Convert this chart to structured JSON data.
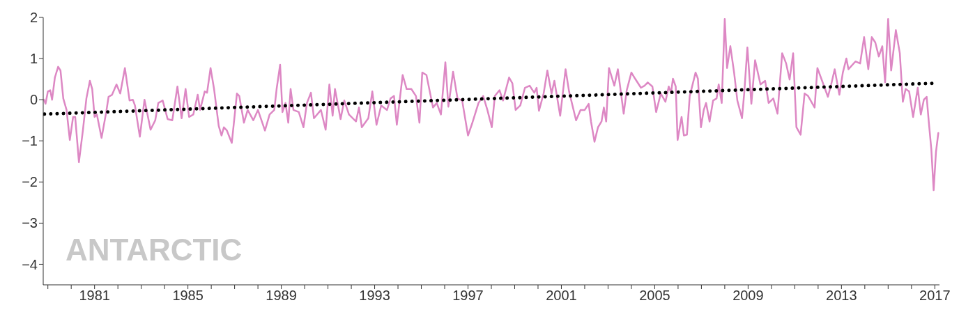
{
  "chart_data": {
    "type": "line",
    "annotations": [
      "ANTARCTIC"
    ],
    "xlim": [
      1978.8,
      2017.2
    ],
    "xticks": [
      {
        "value": 1979,
        "label": null
      },
      {
        "value": 1980,
        "label": null
      },
      1981,
      {
        "value": 1982,
        "label": null
      },
      {
        "value": 1983,
        "label": null
      },
      {
        "value": 1984,
        "label": null
      },
      1985,
      {
        "value": 1986,
        "label": null
      },
      {
        "value": 1987,
        "label": null
      },
      {
        "value": 1988,
        "label": null
      },
      1989,
      {
        "value": 1990,
        "label": null
      },
      {
        "value": 1991,
        "label": null
      },
      {
        "value": 1992,
        "label": null
      },
      1993,
      {
        "value": 1994,
        "label": null
      },
      {
        "value": 1995,
        "label": null
      },
      {
        "value": 1996,
        "label": null
      },
      1997,
      {
        "value": 1998,
        "label": null
      },
      {
        "value": 1999,
        "label": null
      },
      {
        "value": 2000,
        "label": null
      },
      2001,
      {
        "value": 2002,
        "label": null
      },
      {
        "value": 2003,
        "label": null
      },
      {
        "value": 2004,
        "label": null
      },
      2005,
      {
        "value": 2006,
        "label": null
      },
      {
        "value": 2007,
        "label": null
      },
      {
        "value": 2008,
        "label": null
      },
      2009,
      {
        "value": 2010,
        "label": null
      },
      {
        "value": 2011,
        "label": null
      },
      {
        "value": 2012,
        "label": null
      },
      2013,
      {
        "value": 2014,
        "label": null
      },
      {
        "value": 2015,
        "label": null
      },
      {
        "value": 2016,
        "label": null
      },
      2017
    ],
    "ylim": [
      -4.5,
      2
    ],
    "yticks": [
      2,
      1,
      0,
      {
        "value": -1,
        "label": "−1"
      },
      {
        "value": -2,
        "label": "−2"
      },
      {
        "value": -3,
        "label": "−3"
      },
      {
        "value": -4,
        "label": "−4"
      }
    ],
    "marker": "none",
    "series": [
      {
        "color": "#dd88c4",
        "line_style": "solid",
        "x": [
          1978.83,
          1978.9,
          1979.0,
          1979.1,
          1979.18,
          1979.3,
          1979.44,
          1979.54,
          1979.66,
          1979.8,
          1979.94,
          1980.08,
          1980.17,
          1980.33,
          1980.5,
          1980.65,
          1980.8,
          1980.9,
          1981.0,
          1981.1,
          1981.3,
          1981.5,
          1981.6,
          1981.75,
          1981.94,
          1982.1,
          1982.3,
          1982.5,
          1982.64,
          1982.73,
          1982.94,
          1983.14,
          1983.4,
          1983.6,
          1983.73,
          1983.92,
          1984.13,
          1984.33,
          1984.55,
          1984.73,
          1984.9,
          1985.05,
          1985.23,
          1985.42,
          1985.52,
          1985.72,
          1985.82,
          1985.97,
          1986.12,
          1986.32,
          1986.44,
          1986.54,
          1986.67,
          1986.88,
          1987.1,
          1987.2,
          1987.4,
          1987.56,
          1987.8,
          1988.0,
          1988.3,
          1988.5,
          1988.7,
          1988.8,
          1988.95,
          1989.05,
          1989.18,
          1989.3,
          1989.4,
          1989.52,
          1989.75,
          1989.95,
          1990.1,
          1990.27,
          1990.4,
          1990.7,
          1990.9,
          1991.06,
          1991.2,
          1991.3,
          1991.54,
          1991.7,
          1991.9,
          1992.2,
          1992.33,
          1992.45,
          1992.73,
          1992.9,
          1993.08,
          1993.28,
          1993.53,
          1993.68,
          1993.83,
          1993.95,
          1994.2,
          1994.37,
          1994.57,
          1994.77,
          1994.92,
          1995.04,
          1995.22,
          1995.5,
          1995.66,
          1995.84,
          1996.03,
          1996.16,
          1996.36,
          1996.55,
          1996.75,
          1997.0,
          1997.17,
          1997.45,
          1997.65,
          1997.83,
          1998.02,
          1998.15,
          1998.35,
          1998.5,
          1998.76,
          1998.9,
          1999.04,
          1999.24,
          1999.44,
          1999.64,
          1999.84,
          1999.94,
          2000.04,
          2000.24,
          2000.4,
          2000.58,
          2000.7,
          2000.95,
          2001.18,
          2001.33,
          2001.63,
          2001.82,
          2002.0,
          2002.17,
          2002.27,
          2002.42,
          2002.57,
          2002.72,
          2002.82,
          2002.92,
          2003.04,
          2003.27,
          2003.42,
          2003.67,
          2003.8,
          2004.0,
          2004.16,
          2004.41,
          2004.56,
          2004.7,
          2004.9,
          2005.06,
          2005.26,
          2005.46,
          2005.6,
          2005.7,
          2005.78,
          2005.9,
          2005.98,
          2006.15,
          2006.25,
          2006.38,
          2006.5,
          2006.75,
          2006.85,
          2006.98,
          2007.1,
          2007.2,
          2007.35,
          2007.5,
          2007.65,
          2007.74,
          2007.87,
          2008.0,
          2008.1,
          2008.24,
          2008.4,
          2008.54,
          2008.74,
          2008.84,
          2008.97,
          2009.14,
          2009.3,
          2009.53,
          2009.73,
          2009.88,
          2010.08,
          2010.26,
          2010.46,
          2010.63,
          2010.78,
          2010.93,
          2011.07,
          2011.25,
          2011.42,
          2011.57,
          2011.85,
          2011.97,
          2012.17,
          2012.42,
          2012.56,
          2012.71,
          2012.91,
          2013.06,
          2013.21,
          2013.3,
          2013.6,
          2013.8,
          2013.97,
          2014.15,
          2014.3,
          2014.45,
          2014.6,
          2014.75,
          2014.87,
          2015.0,
          2015.13,
          2015.33,
          2015.5,
          2015.63,
          2015.75,
          2015.9,
          2016.07,
          2016.27,
          2016.4,
          2016.53,
          2016.65,
          2016.74,
          2016.85,
          2016.95,
          2017.05,
          2017.15
        ],
        "values": [
          0.0,
          -0.1,
          0.2,
          0.23,
          0.0,
          0.54,
          0.8,
          0.71,
          0.03,
          -0.25,
          -0.98,
          -0.42,
          -0.42,
          -1.52,
          -0.75,
          0.03,
          0.46,
          0.26,
          -0.42,
          -0.36,
          -0.93,
          -0.3,
          0.07,
          0.12,
          0.37,
          0.15,
          0.77,
          -0.02,
          0.0,
          -0.14,
          -0.9,
          0.0,
          -0.73,
          -0.5,
          -0.08,
          -0.02,
          -0.47,
          -0.5,
          0.32,
          -0.45,
          0.26,
          -0.42,
          -0.36,
          0.12,
          -0.25,
          0.2,
          0.17,
          0.77,
          0.26,
          -0.64,
          -0.87,
          -0.67,
          -0.75,
          -1.05,
          0.15,
          0.09,
          -0.56,
          -0.25,
          -0.5,
          -0.25,
          -0.75,
          -0.36,
          -0.25,
          0.26,
          0.85,
          -0.3,
          -0.08,
          -0.56,
          0.26,
          -0.25,
          -0.3,
          -0.67,
          -0.08,
          0.17,
          -0.45,
          -0.25,
          -0.73,
          0.37,
          -0.39,
          0.26,
          -0.47,
          -0.02,
          -0.36,
          -0.53,
          -0.19,
          -0.67,
          -0.45,
          0.2,
          -0.61,
          -0.14,
          -0.25,
          0.03,
          0.09,
          -0.61,
          0.6,
          0.26,
          0.26,
          0.09,
          -0.56,
          0.66,
          0.6,
          -0.19,
          -0.08,
          -0.36,
          0.91,
          -0.17,
          0.68,
          0.03,
          -0.02,
          -0.87,
          -0.59,
          -0.08,
          0.09,
          -0.25,
          -0.67,
          0.09,
          0.23,
          -0.02,
          0.54,
          0.4,
          -0.25,
          -0.14,
          0.29,
          0.34,
          0.17,
          0.29,
          -0.27,
          0.15,
          0.71,
          0.15,
          0.46,
          -0.39,
          0.74,
          0.2,
          -0.5,
          -0.25,
          -0.25,
          -0.1,
          -0.53,
          -1.02,
          -0.67,
          -0.53,
          -0.19,
          -0.53,
          0.77,
          0.34,
          0.74,
          -0.34,
          0.23,
          0.66,
          0.51,
          0.29,
          0.34,
          0.42,
          0.32,
          -0.3,
          0.15,
          -0.05,
          0.32,
          0.17,
          0.51,
          0.32,
          -0.98,
          -0.42,
          -0.87,
          -0.85,
          0.09,
          0.66,
          0.51,
          -0.67,
          -0.25,
          -0.08,
          -0.53,
          -0.02,
          0.03,
          0.37,
          -0.08,
          1.96,
          0.77,
          1.3,
          0.66,
          -0.02,
          -0.45,
          0.2,
          1.27,
          -0.1,
          0.96,
          0.37,
          0.46,
          -0.08,
          0.03,
          -0.34,
          1.13,
          0.88,
          0.49,
          1.13,
          -0.67,
          -0.85,
          0.15,
          0.09,
          -0.19,
          0.77,
          0.46,
          0.07,
          0.37,
          0.74,
          0.12,
          0.66,
          1.0,
          0.74,
          0.93,
          0.88,
          1.52,
          0.74,
          1.52,
          1.39,
          1.05,
          1.3,
          0.42,
          1.96,
          0.71,
          1.69,
          1.13,
          -0.05,
          0.26,
          0.2,
          -0.42,
          0.29,
          -0.36,
          0.0,
          0.07,
          -0.53,
          -1.2,
          -2.2,
          -1.27,
          -0.81
        ]
      },
      {
        "type": "line",
        "color": "#000000",
        "line_style": "dotted",
        "x": [
          1978.85,
          2016.98
        ],
        "values": [
          -0.35,
          0.4
        ]
      }
    ]
  }
}
